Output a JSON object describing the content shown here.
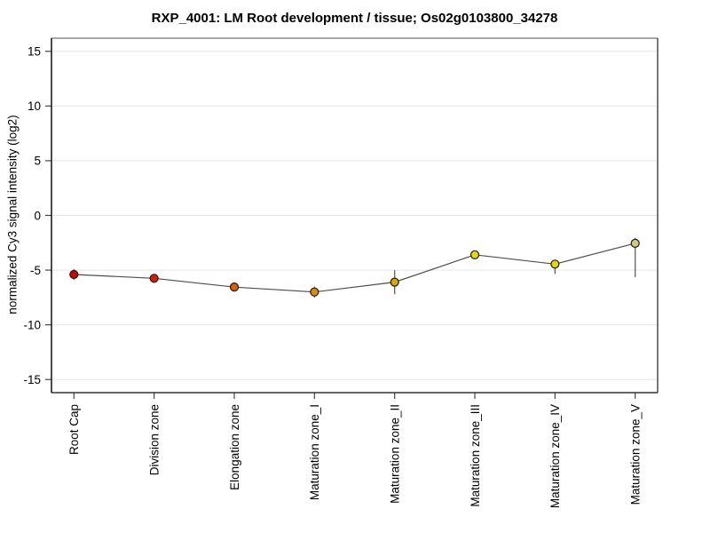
{
  "chart_data": {
    "type": "line",
    "title": "RXP_4001: LM Root development / tissue; Os02g0103800_34278",
    "ylabel": "normalized Cy3 signal intensity (log2)",
    "xlabel": "",
    "categories": [
      "Root Cap",
      "Division zone",
      "Elongation zone",
      "Maturation zone_I",
      "Maturation zone_II",
      "Maturation zone_III",
      "Maturation zone_IV",
      "Maturation zone_V"
    ],
    "series": [
      {
        "name": "normalized Cy3 signal intensity",
        "values": [
          -5.4,
          -5.75,
          -6.55,
          -7.0,
          -6.1,
          -3.6,
          -4.45,
          -2.55
        ],
        "error_up": [
          0.5,
          0.4,
          0.3,
          0.5,
          1.1,
          0.35,
          0.3,
          0.5
        ],
        "error_down": [
          0.5,
          0.4,
          0.3,
          0.5,
          1.1,
          0.35,
          0.9,
          3.1
        ]
      }
    ],
    "point_colors": [
      "#cc0000",
      "#d42000",
      "#dd5c00",
      "#e08a00",
      "#dda400",
      "#e4da00",
      "#e0d600",
      "#d5c97e"
    ],
    "yticks": [
      -15,
      -10,
      -5,
      0,
      5,
      10,
      15
    ],
    "ylim": [
      -16.2,
      16.2
    ],
    "grid": true,
    "legend": "none",
    "line_color": "#4d4d4d",
    "marker_outline": "#1a1a1a",
    "error_bar_color": "#606060",
    "grid_color": "#e5e5e5",
    "tick_color": "#444444",
    "border_top_color": "#8c8c8c",
    "border_right_color": "#4d4d4d",
    "border_bottom_color": "#333333",
    "border_left_color": "#111111"
  }
}
